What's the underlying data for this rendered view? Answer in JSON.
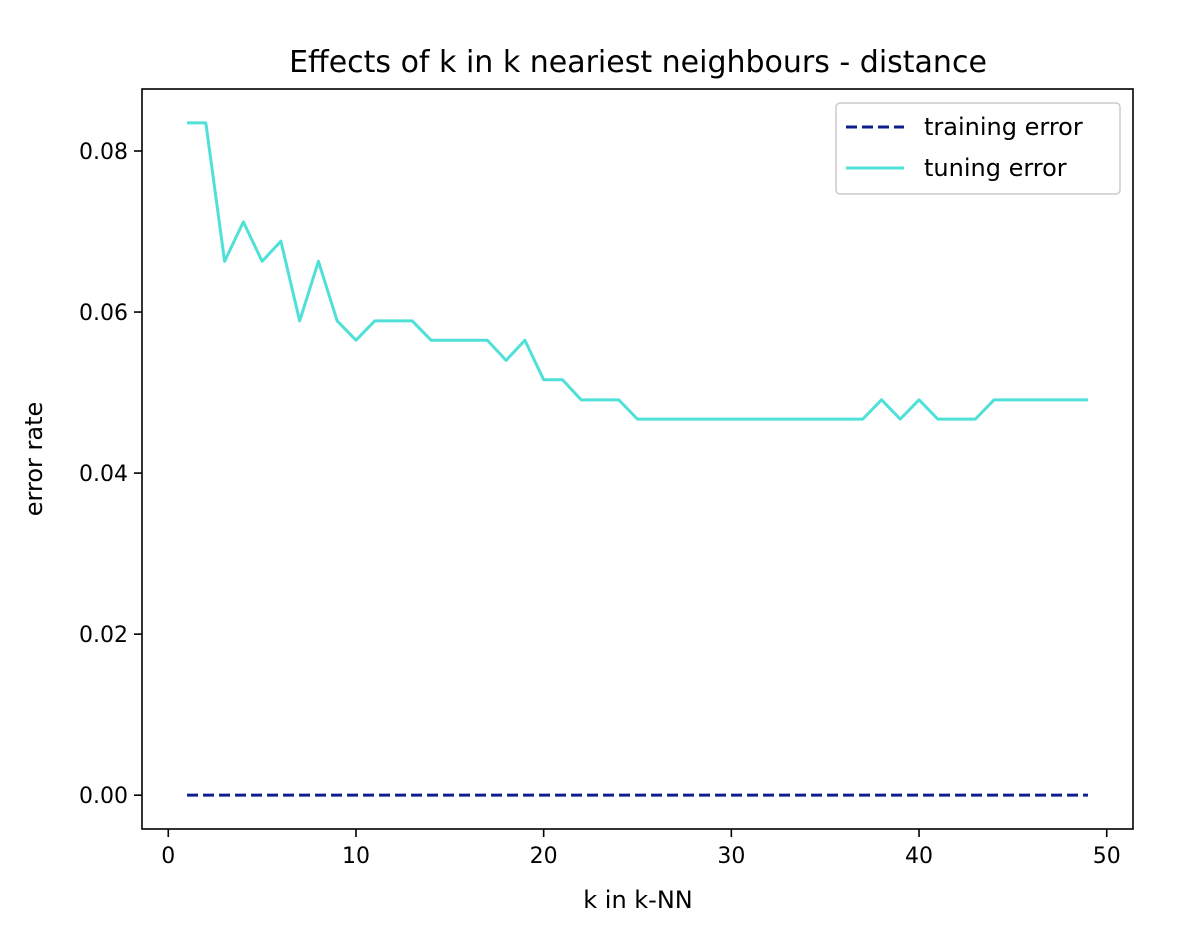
{
  "chart_data": {
    "type": "line",
    "title": "Effects of k in k neariest neighbours - distance",
    "xlabel": "k in k-NN",
    "ylabel": "error rate",
    "xlim": [
      -1.4,
      51.4
    ],
    "ylim": [
      -0.0042,
      0.0877
    ],
    "xticks": [
      0,
      10,
      20,
      30,
      40,
      50
    ],
    "xtick_labels": [
      "0",
      "10",
      "20",
      "30",
      "40",
      "50"
    ],
    "yticks": [
      0.0,
      0.02,
      0.04,
      0.06,
      0.08
    ],
    "ytick_labels": [
      "0.00",
      "0.02",
      "0.04",
      "0.06",
      "0.08"
    ],
    "grid": false,
    "legend_position": "top-right",
    "x": [
      1,
      2,
      3,
      4,
      5,
      6,
      7,
      8,
      9,
      10,
      11,
      12,
      13,
      14,
      15,
      16,
      17,
      18,
      19,
      20,
      21,
      22,
      23,
      24,
      25,
      26,
      27,
      28,
      29,
      30,
      31,
      32,
      33,
      34,
      35,
      36,
      37,
      38,
      39,
      40,
      41,
      42,
      43,
      44,
      45,
      46,
      47,
      48,
      49
    ],
    "series": [
      {
        "name": "training error",
        "color": "#0c1f8c",
        "style": "dashed",
        "values": [
          0,
          0,
          0,
          0,
          0,
          0,
          0,
          0,
          0,
          0,
          0,
          0,
          0,
          0,
          0,
          0,
          0,
          0,
          0,
          0,
          0,
          0,
          0,
          0,
          0,
          0,
          0,
          0,
          0,
          0,
          0,
          0,
          0,
          0,
          0,
          0,
          0,
          0,
          0,
          0,
          0,
          0,
          0,
          0,
          0,
          0,
          0,
          0,
          0
        ]
      },
      {
        "name": "tuning error",
        "color": "#4fe0d8",
        "style": "solid",
        "values": [
          0.0835,
          0.0835,
          0.0663,
          0.0712,
          0.0663,
          0.0688,
          0.0589,
          0.0663,
          0.0589,
          0.0565,
          0.0589,
          0.0589,
          0.0589,
          0.0565,
          0.0565,
          0.0565,
          0.0565,
          0.054,
          0.0565,
          0.0516,
          0.0516,
          0.0491,
          0.0491,
          0.0491,
          0.0467,
          0.0467,
          0.0467,
          0.0467,
          0.0467,
          0.0467,
          0.0467,
          0.0467,
          0.0467,
          0.0467,
          0.0467,
          0.0467,
          0.0467,
          0.0491,
          0.0467,
          0.0491,
          0.0467,
          0.0467,
          0.0467,
          0.0491,
          0.0491,
          0.0491,
          0.0491,
          0.0491,
          0.0491
        ]
      }
    ]
  }
}
